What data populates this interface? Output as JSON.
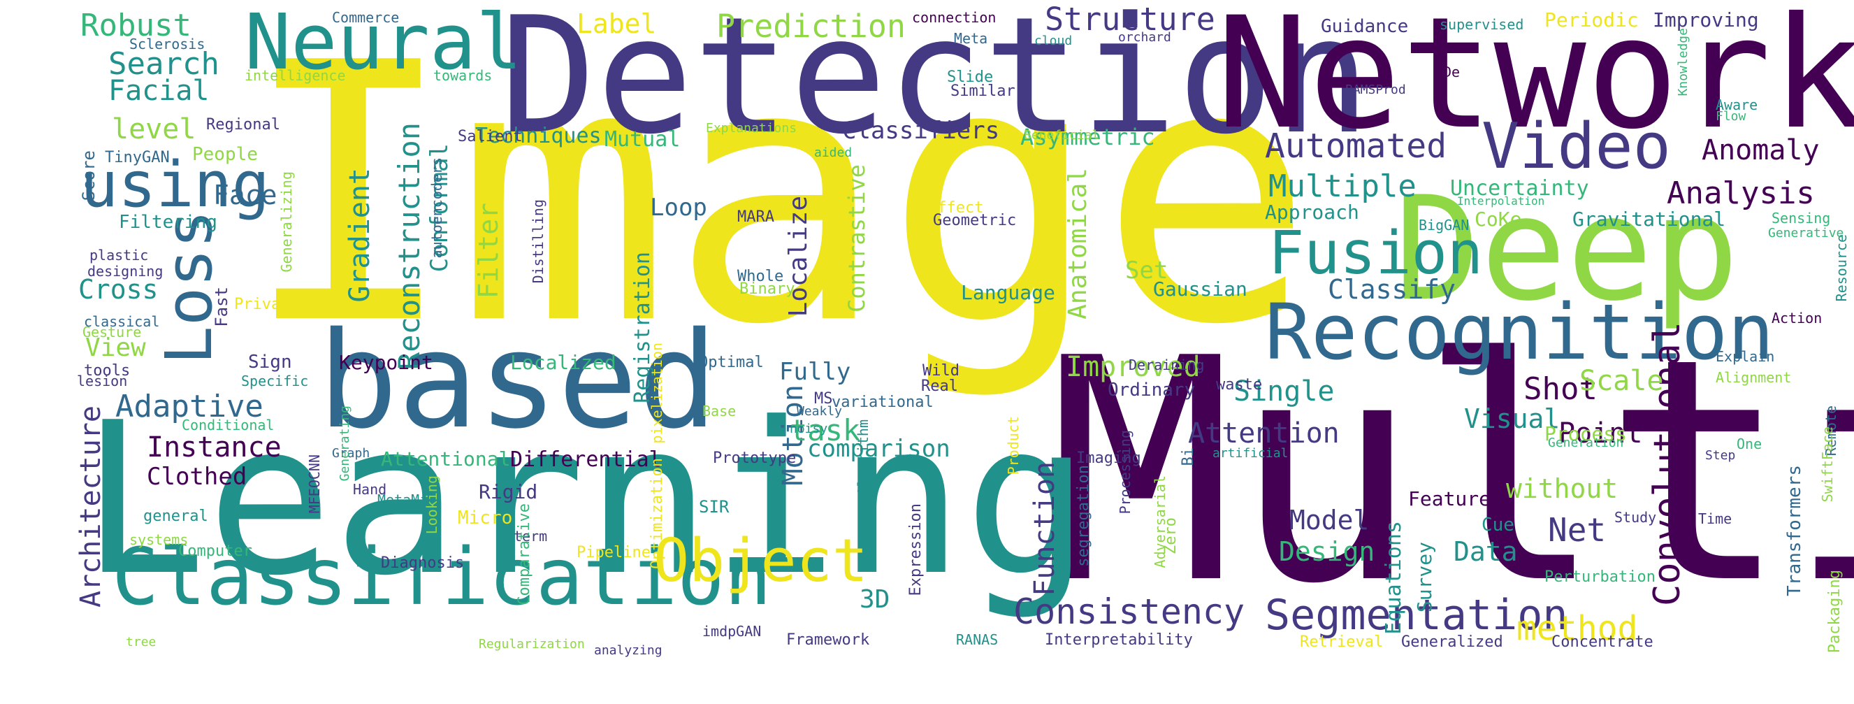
{
  "palette": {
    "yellow": "#efe51c",
    "lime": "#8fd744",
    "green": "#35b779",
    "teal": "#21918c",
    "blue": "#31688e",
    "indigo": "#443a83",
    "purple": "#440154"
  },
  "words": [
    {
      "text": "Image",
      "color": "yellow"
    },
    {
      "text": "Multi",
      "color": "purple"
    },
    {
      "text": "Detection",
      "color": "indigo"
    },
    {
      "text": "Network",
      "color": "purple"
    },
    {
      "text": "Learning",
      "color": "teal"
    },
    {
      "text": "based",
      "color": "blue"
    },
    {
      "text": "Deep",
      "color": "lime"
    },
    {
      "text": "Neural",
      "color": "teal"
    },
    {
      "text": "Recognition",
      "color": "blue"
    },
    {
      "text": "Classification",
      "color": "teal"
    },
    {
      "text": "using",
      "color": "blue"
    },
    {
      "text": "Object",
      "color": "yellow"
    },
    {
      "text": "Video",
      "color": "indigo"
    },
    {
      "text": "Fusion",
      "color": "teal"
    },
    {
      "text": "Loss",
      "color": "blue"
    },
    {
      "text": "Segmentation",
      "color": "indigo"
    },
    {
      "text": "Consistency",
      "color": "indigo"
    },
    {
      "text": "Convolutional",
      "color": "purple"
    },
    {
      "text": "Structure",
      "color": "indigo"
    },
    {
      "text": "Prediction",
      "color": "lime"
    },
    {
      "text": "Robust",
      "color": "green"
    },
    {
      "text": "Search",
      "color": "teal"
    },
    {
      "text": "Facial",
      "color": "teal"
    },
    {
      "text": "level",
      "color": "lime"
    },
    {
      "text": "Label",
      "color": "yellow"
    },
    {
      "text": "Face",
      "color": "blue"
    },
    {
      "text": "Cross",
      "color": "teal"
    },
    {
      "text": "View",
      "color": "lime"
    },
    {
      "text": "Adaptive",
      "color": "blue"
    },
    {
      "text": "Instance",
      "color": "purple"
    },
    {
      "text": "Clothed",
      "color": "purple"
    },
    {
      "text": "Architecture",
      "color": "indigo"
    },
    {
      "text": "Reconstruction",
      "color": "teal"
    },
    {
      "text": "Gradient",
      "color": "teal"
    },
    {
      "text": "Conformal",
      "color": "teal"
    },
    {
      "text": "Filter",
      "color": "lime"
    },
    {
      "text": "Localize",
      "color": "indigo"
    },
    {
      "text": "Contrastive",
      "color": "lime"
    },
    {
      "text": "Motion",
      "color": "blue"
    },
    {
      "text": "task",
      "color": "green"
    },
    {
      "text": "Multiple",
      "color": "teal"
    },
    {
      "text": "Uncertainty",
      "color": "green"
    },
    {
      "text": "Automated",
      "color": "indigo"
    },
    {
      "text": "Anomaly",
      "color": "purple"
    },
    {
      "text": "Analysis",
      "color": "purple"
    },
    {
      "text": "Classify",
      "color": "blue"
    },
    {
      "text": "Anatomical",
      "color": "lime"
    },
    {
      "text": "Improved",
      "color": "lime"
    },
    {
      "text": "Single",
      "color": "teal"
    },
    {
      "text": "Shot",
      "color": "purple"
    },
    {
      "text": "Scale",
      "color": "lime"
    },
    {
      "text": "Attention",
      "color": "indigo"
    },
    {
      "text": "Visual",
      "color": "teal"
    },
    {
      "text": "Point",
      "color": "purple"
    },
    {
      "text": "without",
      "color": "lime"
    },
    {
      "text": "Net",
      "color": "indigo"
    },
    {
      "text": "Model",
      "color": "indigo"
    },
    {
      "text": "Data",
      "color": "teal"
    },
    {
      "text": "Design",
      "color": "green"
    },
    {
      "text": "method",
      "color": "yellow"
    },
    {
      "text": "comparison",
      "color": "teal"
    },
    {
      "text": "Function",
      "color": "indigo"
    },
    {
      "text": "Fully",
      "color": "blue"
    },
    {
      "text": "Loop",
      "color": "blue"
    },
    {
      "text": "Gravitational",
      "color": "teal"
    },
    {
      "text": "Asymmetric",
      "color": "green"
    },
    {
      "text": "Classifiers",
      "color": "indigo"
    },
    {
      "text": "Techniques",
      "color": "teal"
    },
    {
      "text": "Mutual",
      "color": "green"
    },
    {
      "text": "Approach",
      "color": "teal"
    },
    {
      "text": "Language",
      "color": "teal"
    },
    {
      "text": "Gaussian",
      "color": "teal"
    },
    {
      "text": "Set",
      "color": "lime"
    },
    {
      "text": "Registration",
      "color": "teal"
    },
    {
      "text": "Localized",
      "color": "green"
    },
    {
      "text": "Keypoint",
      "color": "purple"
    },
    {
      "text": "Sign",
      "color": "indigo"
    },
    {
      "text": "Differential",
      "color": "purple"
    },
    {
      "text": "Attentional",
      "color": "green"
    },
    {
      "text": "Ordinary",
      "color": "indigo"
    },
    {
      "text": "Survey",
      "color": "teal"
    },
    {
      "text": "Equations",
      "color": "teal"
    },
    {
      "text": "Feature",
      "color": "purple"
    },
    {
      "text": "Cue",
      "color": "teal"
    },
    {
      "text": "Process",
      "color": "lime"
    },
    {
      "text": "Rigid",
      "color": "indigo"
    },
    {
      "text": "3D",
      "color": "teal"
    },
    {
      "text": "Guidance",
      "color": "indigo"
    },
    {
      "text": "Improving",
      "color": "indigo"
    },
    {
      "text": "Periodic",
      "color": "yellow"
    },
    {
      "text": "CoKe",
      "color": "lime"
    },
    {
      "text": "Filtering",
      "color": "teal"
    },
    {
      "text": "People",
      "color": "lime"
    },
    {
      "text": "Score",
      "color": "blue"
    },
    {
      "text": "Regional",
      "color": "indigo"
    },
    {
      "text": "TinyGAN",
      "color": "blue"
    },
    {
      "text": "Salient",
      "color": "indigo"
    },
    {
      "text": "Commerce",
      "color": "blue"
    },
    {
      "text": "Sclerosis",
      "color": "blue"
    },
    {
      "text": "intelligence",
      "color": "lime"
    },
    {
      "text": "towards",
      "color": "green"
    },
    {
      "text": "connection",
      "color": "purple"
    },
    {
      "text": "Meta",
      "color": "blue"
    },
    {
      "text": "cloud",
      "color": "teal"
    },
    {
      "text": "orchard",
      "color": "indigo"
    },
    {
      "text": "supervised",
      "color": "teal"
    },
    {
      "text": "Similar",
      "color": "indigo"
    },
    {
      "text": "Slide",
      "color": "teal"
    },
    {
      "text": "BAMSProd",
      "color": "indigo"
    },
    {
      "text": "De",
      "color": "purple"
    },
    {
      "text": "Knowledge",
      "color": "green"
    },
    {
      "text": "Aware",
      "color": "teal"
    },
    {
      "text": "Flow",
      "color": "green"
    },
    {
      "text": "Explanations",
      "color": "lime"
    },
    {
      "text": "aided",
      "color": "green"
    },
    {
      "text": "Beneficial",
      "color": "lime"
    },
    {
      "text": "Interpolation",
      "color": "green"
    },
    {
      "text": "BigGAN",
      "color": "teal"
    },
    {
      "text": "Sensing",
      "color": "green"
    },
    {
      "text": "Resource",
      "color": "teal"
    },
    {
      "text": "Generative",
      "color": "green"
    },
    {
      "text": "Action",
      "color": "purple"
    },
    {
      "text": "Explain",
      "color": "blue"
    },
    {
      "text": "Alignment",
      "color": "lime"
    },
    {
      "text": "Remote",
      "color": "blue"
    },
    {
      "text": "SwiftFace",
      "color": "lime"
    },
    {
      "text": "Transformers",
      "color": "blue"
    },
    {
      "text": "Packaging",
      "color": "lime"
    },
    {
      "text": "One",
      "color": "green"
    },
    {
      "text": "Step",
      "color": "indigo"
    },
    {
      "text": "Generation",
      "color": "green"
    },
    {
      "text": "Study",
      "color": "indigo"
    },
    {
      "text": "Time",
      "color": "indigo"
    },
    {
      "text": "Perturbation",
      "color": "green"
    },
    {
      "text": "Concentrate",
      "color": "indigo"
    },
    {
      "text": "Generalized",
      "color": "indigo"
    },
    {
      "text": "Retrieval",
      "color": "yellow"
    },
    {
      "text": "Interpretability",
      "color": "indigo"
    },
    {
      "text": "RANAS",
      "color": "teal"
    },
    {
      "text": "Framework",
      "color": "indigo"
    },
    {
      "text": "imdpGAN",
      "color": "indigo"
    },
    {
      "text": "analyzing",
      "color": "indigo"
    },
    {
      "text": "Regularization",
      "color": "lime"
    },
    {
      "text": "tree",
      "color": "lime"
    },
    {
      "text": "Computer",
      "color": "green"
    },
    {
      "text": "Diagnosis",
      "color": "indigo"
    },
    {
      "text": "term",
      "color": "indigo"
    },
    {
      "text": "Pipeline",
      "color": "yellow"
    },
    {
      "text": "SIR",
      "color": "teal"
    },
    {
      "text": "MetaMix",
      "color": "teal"
    },
    {
      "text": "Micro",
      "color": "yellow"
    },
    {
      "text": "Hand",
      "color": "indigo"
    },
    {
      "text": "Looking",
      "color": "lime"
    },
    {
      "text": "MFEOCNN",
      "color": "indigo"
    },
    {
      "text": "general",
      "color": "teal"
    },
    {
      "text": "systems",
      "color": "lime"
    },
    {
      "text": "Graph",
      "color": "blue"
    },
    {
      "text": "Generating",
      "color": "green"
    },
    {
      "text": "Conditional",
      "color": "green"
    },
    {
      "text": "Specific",
      "color": "teal"
    },
    {
      "text": "lesion",
      "color": "indigo"
    },
    {
      "text": "tools",
      "color": "indigo"
    },
    {
      "text": "Fast",
      "color": "indigo"
    },
    {
      "text": "Gesture",
      "color": "lime"
    },
    {
      "text": "Private",
      "color": "yellow"
    },
    {
      "text": "classical",
      "color": "blue"
    },
    {
      "text": "plastic",
      "color": "indigo"
    },
    {
      "text": "designing",
      "color": "indigo"
    },
    {
      "text": "Generalizing",
      "color": "lime"
    },
    {
      "text": "autoencoders",
      "color": "blue"
    },
    {
      "text": "Distilling",
      "color": "indigo"
    },
    {
      "text": "Whole",
      "color": "blue"
    },
    {
      "text": "Binary",
      "color": "lime"
    },
    {
      "text": "MARA",
      "color": "indigo"
    },
    {
      "text": "Optimal",
      "color": "blue"
    },
    {
      "text": "pixelization",
      "color": "yellow"
    },
    {
      "text": "Optimization",
      "color": "yellow"
    },
    {
      "text": "Prototype",
      "color": "indigo"
    },
    {
      "text": "Base",
      "color": "lime"
    },
    {
      "text": "noisy",
      "color": "teal"
    },
    {
      "text": "Weakly",
      "color": "blue"
    },
    {
      "text": "MS",
      "color": "indigo"
    },
    {
      "text": "variational",
      "color": "blue"
    },
    {
      "text": "Expression",
      "color": "indigo"
    },
    {
      "text": "Comparative",
      "color": "green"
    },
    {
      "text": "Product",
      "color": "yellow"
    },
    {
      "text": "Algorithm",
      "color": "teal"
    },
    {
      "text": "Processing",
      "color": "indigo"
    },
    {
      "text": "segregation",
      "color": "blue"
    },
    {
      "text": "Imaging",
      "color": "indigo"
    },
    {
      "text": "Zero",
      "color": "lime"
    },
    {
      "text": "Bi",
      "color": "blue"
    },
    {
      "text": "Adversarial",
      "color": "lime"
    },
    {
      "text": "artificial",
      "color": "teal"
    },
    {
      "text": "Deraining",
      "color": "indigo"
    },
    {
      "text": "waste",
      "color": "indigo"
    },
    {
      "text": "Wild",
      "color": "indigo"
    },
    {
      "text": "Real",
      "color": "indigo"
    },
    {
      "text": "Affect",
      "color": "yellow"
    },
    {
      "text": "Geometric",
      "color": "indigo"
    }
  ]
}
